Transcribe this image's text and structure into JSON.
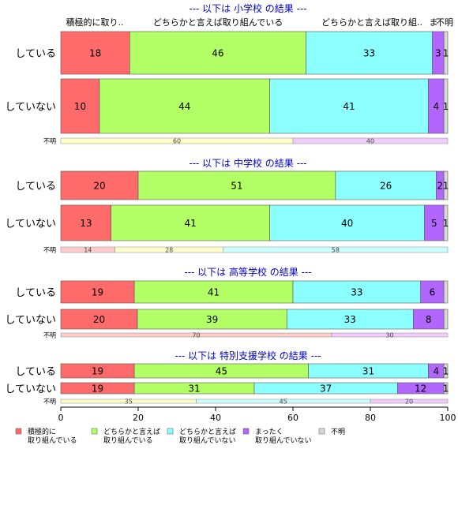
{
  "chart_data": {
    "type": "bar",
    "orientation": "horizontal",
    "stacked": true,
    "top_column_labels": [
      "積極的に取り..",
      "どちらかと言えば取り組んでいる",
      "どちらかと言えば取り組..",
      "ま",
      "不明"
    ],
    "legend": {
      "placement": "bottom",
      "items": [
        {
          "label": "積極的に\n取り組んでいる",
          "color": "#ff6b6b"
        },
        {
          "label": "どちらかと言えば\n取り組んでいる",
          "color": "#b3ff66"
        },
        {
          "label": "どちらかと言えば\n取り組んでいない",
          "color": "#8cffff"
        },
        {
          "label": "まったく\n取り組んでいない",
          "color": "#b366ff"
        },
        {
          "label": "不明",
          "color": "#d9d9d9"
        }
      ]
    },
    "x_axis": {
      "range": [
        0,
        100
      ],
      "ticks": [
        0,
        20,
        40,
        60,
        80,
        100
      ]
    },
    "panels": [
      {
        "title": "--- 以下は 小学校 の結果 ---",
        "rows": [
          {
            "label": "している",
            "values": [
              18,
              46,
              33,
              3,
              1
            ],
            "labels": [
              "18",
              "46",
              "33",
              "3",
              "1"
            ]
          },
          {
            "label": "していない",
            "values": [
              10,
              44,
              41,
              4,
              1
            ],
            "labels": [
              "10",
              "44",
              "41",
              "4",
              "1"
            ]
          }
        ],
        "composition": {
          "label": "不明",
          "values": [
            60,
            40
          ],
          "labels": [
            "60",
            "40"
          ],
          "colors": [
            "#ffffcc",
            "#f2ccff"
          ]
        }
      },
      {
        "title": "--- 以下は 中学校 の結果 ---",
        "rows": [
          {
            "label": "している",
            "values": [
              20,
              51,
              26,
              2,
              1
            ],
            "labels": [
              "20",
              "51",
              "26",
              "2",
              "1"
            ]
          },
          {
            "label": "していない",
            "values": [
              13,
              41,
              40,
              5,
              1
            ],
            "labels": [
              "13",
              "41",
              "40",
              "5",
              "1"
            ]
          }
        ],
        "composition": {
          "label": "不明",
          "values": [
            14,
            28,
            58
          ],
          "labels": [
            "14",
            "28",
            "58"
          ],
          "colors": [
            "#ffcccc",
            "#ffffcc",
            "#ccffff"
          ]
        }
      },
      {
        "title": "--- 以下は 高等学校 の結果 ---",
        "rows": [
          {
            "label": "している",
            "values": [
              19,
              41,
              33,
              6,
              1
            ],
            "labels": [
              "19",
              "41",
              "33",
              "6",
              ""
            ]
          },
          {
            "label": "していない",
            "values": [
              20,
              39,
              33,
              8,
              1
            ],
            "labels": [
              "20",
              "39",
              "33",
              "8",
              ""
            ]
          }
        ],
        "composition": {
          "label": "不明",
          "values": [
            70,
            30
          ],
          "labels": [
            "70",
            "30"
          ],
          "colors": [
            "#ffcccc",
            "#f2ccff"
          ]
        }
      },
      {
        "title": "--- 以下は 特別支援学校 の結果 ---",
        "rows": [
          {
            "label": "している",
            "values": [
              19,
              45,
              31,
              4,
              1
            ],
            "labels": [
              "19",
              "45",
              "31",
              "4",
              "1"
            ]
          },
          {
            "label": "していない",
            "values": [
              19,
              31,
              37,
              12,
              1
            ],
            "labels": [
              "19",
              "31",
              "37",
              "12",
              "1"
            ]
          }
        ],
        "composition": {
          "label": "不明",
          "values": [
            35,
            45,
            20
          ],
          "labels": [
            "35",
            "45",
            "20"
          ],
          "colors": [
            "#ffffcc",
            "#ccffff",
            "#f2ccff"
          ]
        }
      }
    ]
  }
}
